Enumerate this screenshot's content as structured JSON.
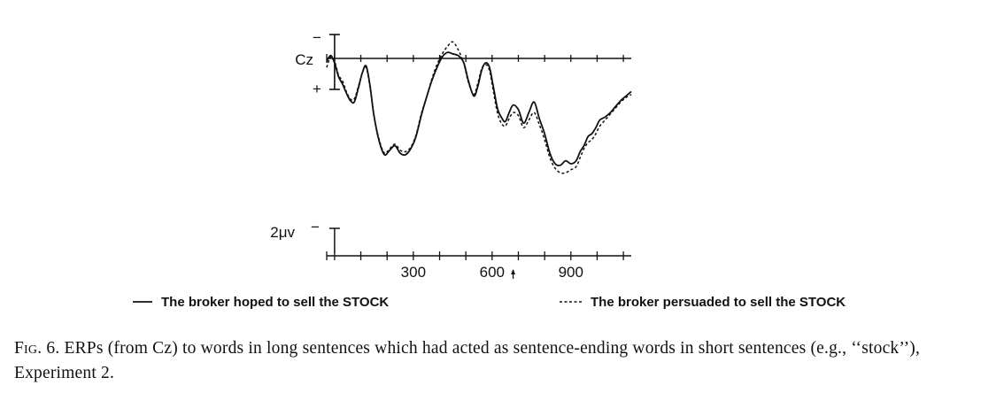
{
  "chart_data": {
    "type": "line",
    "electrode_label": "Cz",
    "polarity_top": "−",
    "polarity_bottom": "+",
    "scale_label": "2μv",
    "scale_polarity": "−",
    "x_ticks": [
      {
        "x": 300,
        "label": "300"
      },
      {
        "x": 600,
        "label": "600"
      },
      {
        "x": 900,
        "label": "900"
      }
    ],
    "xlim": [
      -30,
      1130
    ],
    "ylim": [
      -4.5,
      7.5
    ],
    "ylabel": "",
    "series": [
      {
        "name": "The broker hoped to sell the STOCK",
        "style": "solid",
        "x": [
          -30,
          -15,
          0,
          15,
          30,
          45,
          60,
          75,
          90,
          105,
          120,
          135,
          150,
          170,
          190,
          210,
          230,
          250,
          270,
          290,
          310,
          330,
          350,
          370,
          390,
          410,
          430,
          450,
          470,
          490,
          500,
          510,
          530,
          545,
          560,
          575,
          590,
          605,
          620,
          635,
          650,
          665,
          680,
          700,
          720,
          740,
          760,
          780,
          800,
          820,
          840,
          860,
          880,
          900,
          920,
          935,
          950,
          965,
          980,
          995,
          1010,
          1030,
          1050,
          1070,
          1090,
          1110,
          1130
        ],
        "y": [
          0.2,
          -0.2,
          0.3,
          1.2,
          1.7,
          2.3,
          2.8,
          2.9,
          2.0,
          1.0,
          0.5,
          1.8,
          3.8,
          5.5,
          6.4,
          6.1,
          5.8,
          6.3,
          6.4,
          6.0,
          5.2,
          3.8,
          2.6,
          1.5,
          0.6,
          -0.1,
          -0.4,
          -0.3,
          -0.2,
          0.2,
          0.8,
          1.5,
          2.5,
          1.9,
          0.8,
          0.3,
          0.6,
          1.9,
          3.3,
          3.9,
          4.2,
          3.6,
          3.1,
          3.4,
          4.3,
          3.6,
          2.9,
          4.0,
          5.0,
          6.3,
          7.0,
          7.1,
          6.8,
          7.0,
          6.8,
          6.2,
          5.8,
          5.2,
          5.0,
          4.6,
          4.1,
          3.9,
          3.6,
          3.2,
          2.8,
          2.5,
          2.2
        ]
      },
      {
        "name": "The broker persuaded to sell the STOCK",
        "style": "dashed",
        "x": [
          -30,
          -15,
          0,
          15,
          30,
          45,
          60,
          75,
          90,
          105,
          120,
          135,
          150,
          170,
          190,
          210,
          230,
          250,
          270,
          290,
          310,
          330,
          350,
          370,
          390,
          410,
          430,
          450,
          470,
          490,
          500,
          510,
          530,
          545,
          560,
          575,
          590,
          605,
          620,
          635,
          650,
          665,
          680,
          700,
          720,
          740,
          760,
          780,
          800,
          820,
          840,
          860,
          880,
          900,
          920,
          935,
          950,
          965,
          980,
          995,
          1010,
          1030,
          1050,
          1070,
          1090,
          1110,
          1130
        ],
        "y": [
          0.6,
          -0.1,
          0.2,
          1.1,
          1.5,
          2.2,
          2.7,
          2.7,
          1.9,
          1.0,
          0.6,
          1.9,
          3.8,
          5.4,
          6.3,
          6.0,
          5.7,
          6.1,
          6.2,
          5.9,
          5.1,
          3.7,
          2.6,
          1.4,
          0.4,
          -0.3,
          -0.8,
          -1.1,
          -0.6,
          0.2,
          0.9,
          1.6,
          2.4,
          1.7,
          0.7,
          0.4,
          0.8,
          2.2,
          3.6,
          4.3,
          4.5,
          4.0,
          3.6,
          3.8,
          4.6,
          4.1,
          3.6,
          4.4,
          5.4,
          6.6,
          7.3,
          7.6,
          7.6,
          7.4,
          7.2,
          6.6,
          6.0,
          5.6,
          5.4,
          5.0,
          4.5,
          4.1,
          3.7,
          3.3,
          2.9,
          2.6,
          2.4
        ]
      }
    ]
  },
  "caption": {
    "fig_label": "Fig. 6.",
    "text": " ERPs (from Cz) to words in long sentences which had acted as sentence-ending words in short sentences (e.g., ‘‘stock’’), Experiment 2."
  },
  "colors": {
    "ink": "#111111"
  }
}
